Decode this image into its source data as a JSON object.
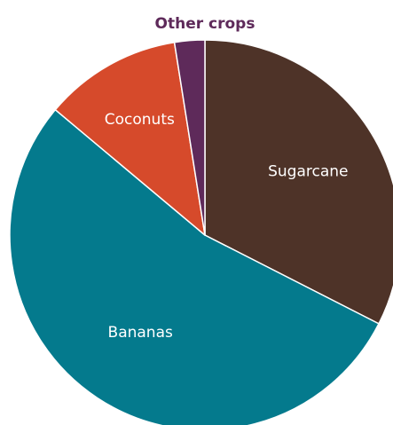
{
  "chart_data": {
    "type": "pie",
    "title": "",
    "slices": [
      {
        "label": "Sugarcane",
        "value": 32.5,
        "color": "#4e3328",
        "label_inside": true
      },
      {
        "label": "Bananas",
        "value": 53.6,
        "color": "#047a8d",
        "label_inside": true
      },
      {
        "label": "Coconuts",
        "value": 11.4,
        "color": "#d64a2b",
        "label_inside": true
      },
      {
        "label": "Other crops",
        "value": 2.5,
        "color": "#5e2a5a",
        "label_inside": false
      }
    ],
    "start_angle_deg": 0,
    "direction": "clockwise",
    "slice_border_color": "#ffffff"
  }
}
